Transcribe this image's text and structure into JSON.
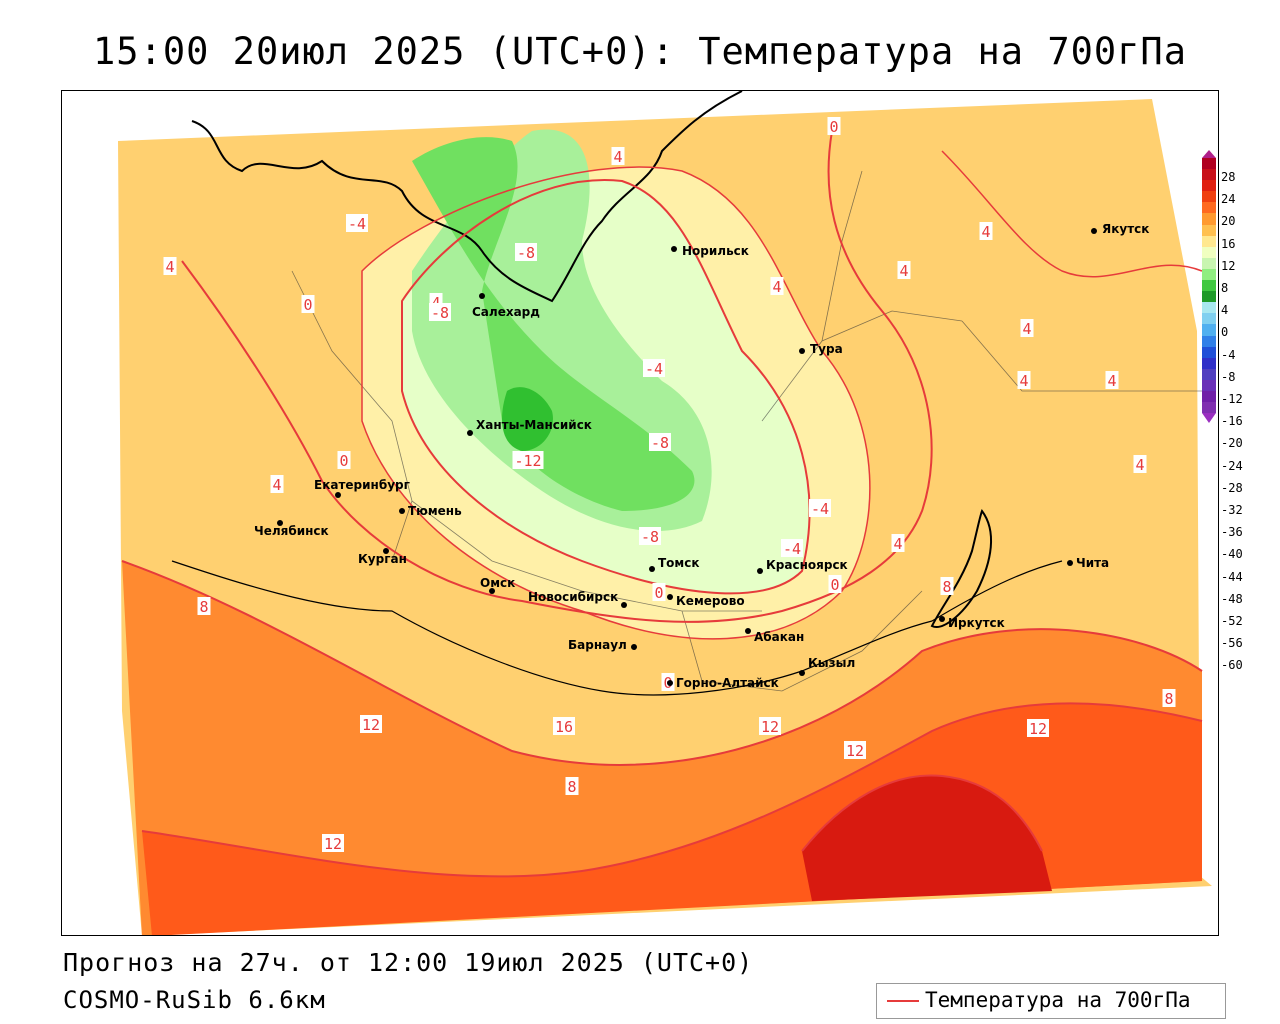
{
  "title": "15:00 20июл 2025 (UTC+0): Температура на 700гПа",
  "forecast_line": "Прогноз на 27ч. от 12:00 19июл 2025 (UTC+0)",
  "model_line": "COSMO-RuSib 6.6км",
  "legend": {
    "label": "Температура на 700гПа",
    "line_color": "#e63b3b"
  },
  "colorbar": {
    "ticks": [
      "28",
      "24",
      "20",
      "16",
      "12",
      "8",
      "4",
      "0",
      "-4",
      "-8",
      "-12",
      "-16",
      "-20",
      "-24",
      "-28",
      "-32",
      "-36",
      "-40",
      "-44",
      "-48",
      "-52",
      "-56",
      "-60"
    ],
    "colors": [
      "#b00020",
      "#c8101a",
      "#e02010",
      "#f04010",
      "#ff6a20",
      "#ff9a30",
      "#ffc050",
      "#ffe890",
      "#f0ffc0",
      "#c8f5b0",
      "#90ee80",
      "#40c840",
      "#1e9a28",
      "#a8e8f0",
      "#80d0f0",
      "#50b0f0",
      "#3080e8",
      "#2050d8",
      "#3030c8",
      "#5040c0",
      "#6a30b8",
      "#7020a8",
      "#8030b0"
    ]
  },
  "cities": [
    {
      "name": "Якутск"
    },
    {
      "name": "Норильск"
    },
    {
      "name": "Салехард"
    },
    {
      "name": "Тура"
    },
    {
      "name": "Ханты-Мансийск"
    },
    {
      "name": "Екатеринбург"
    },
    {
      "name": "Тюмень"
    },
    {
      "name": "Челябинск"
    },
    {
      "name": "Курган"
    },
    {
      "name": "Омск"
    },
    {
      "name": "Новосибирск"
    },
    {
      "name": "Томск"
    },
    {
      "name": "Кемерово"
    },
    {
      "name": "Красноярск"
    },
    {
      "name": "Абакан"
    },
    {
      "name": "Барнаул"
    },
    {
      "name": "Горно-Алтайск"
    },
    {
      "name": "Кызыл"
    },
    {
      "name": "Иркутск"
    },
    {
      "name": "Чита"
    }
  ],
  "contour_labels": [
    "0",
    "4",
    "-4",
    "4",
    "0",
    "4",
    "-8",
    "-8",
    "-4",
    "-12",
    "-8",
    "-8",
    "0",
    "4",
    "-4",
    "0",
    "4",
    "0",
    "8",
    "8",
    "12",
    "16",
    "12",
    "12",
    "12",
    "8",
    "4",
    "4",
    "4",
    "4",
    "8",
    "4",
    "4",
    "12",
    "-4",
    "4",
    "0",
    "8"
  ]
}
